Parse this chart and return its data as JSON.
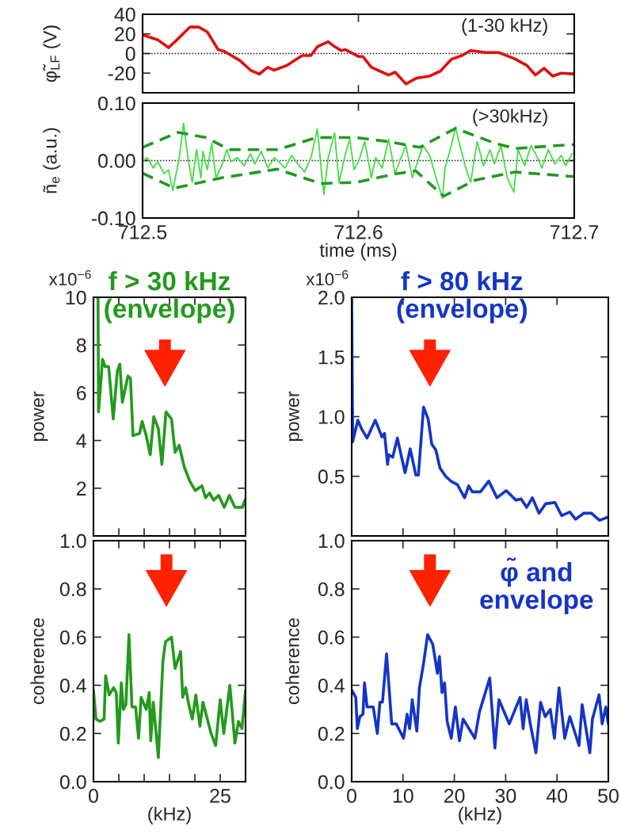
{
  "chart_data": [
    {
      "type": "line",
      "ylabel": "φ̃$_{LF}$ (V)",
      "annotations": [
        "(1-30 kHz)"
      ],
      "xlim": [
        712.5,
        712.7
      ],
      "xticks": [
        712.5,
        712.6,
        712.7
      ],
      "ylim": [
        -40,
        40
      ],
      "yticks": [
        -20,
        0,
        20,
        40
      ],
      "tick_labels": "y",
      "ref_lines": [
        {
          "axis": "y",
          "value": 0,
          "color": "#000000",
          "line_style": "dotted"
        }
      ],
      "series": [
        {
          "color": "#e01010",
          "x": [
            712.5,
            712.507,
            712.512,
            712.515,
            712.522,
            712.526,
            712.53,
            712.535,
            712.538,
            712.545,
            712.55,
            712.554,
            712.558,
            712.561,
            712.567,
            712.574,
            712.578,
            712.581,
            712.586,
            712.589,
            712.592,
            712.594,
            712.6,
            712.602,
            712.606,
            712.61,
            712.614,
            712.617,
            712.622,
            712.627,
            712.633,
            712.638,
            712.643,
            712.648,
            712.652,
            712.659,
            712.665,
            712.672,
            712.678,
            712.682,
            712.686,
            712.69,
            712.694,
            712.7
          ],
          "values": [
            19,
            14,
            6,
            12,
            27,
            27,
            22,
            4,
            2,
            -7,
            -17,
            -21,
            -14,
            -17,
            -12,
            -2,
            -2,
            7,
            12,
            7,
            3,
            4,
            -3,
            -3,
            -14,
            -18,
            -22,
            -19,
            -31,
            -25,
            -23,
            -18,
            -6,
            -2,
            3,
            1,
            1,
            -5,
            -12,
            -22,
            -15,
            -23,
            -20,
            -21
          ]
        }
      ]
    },
    {
      "type": "line",
      "xlabel": "time (ms)",
      "ylabel": "ñ$_{e}$ (a.u.)",
      "annotations": [
        "(>30kHz)"
      ],
      "xlim": [
        712.5,
        712.7
      ],
      "xticks": [
        712.5,
        712.6,
        712.7
      ],
      "ylim": [
        -0.1,
        0.1
      ],
      "yticks": [
        {
          "value": -0.1,
          "label": "-0.10"
        },
        {
          "value": 0,
          "label": "0.00"
        },
        {
          "value": 0.1,
          "label": "0.10"
        }
      ],
      "ref_lines": [
        {
          "axis": "y",
          "value": 0,
          "color": "#000000",
          "line_style": "dotted"
        }
      ],
      "series": [
        {
          "color": "#44dd44",
          "x": [
            712.5,
            712.502,
            712.505,
            712.507,
            712.51,
            712.512,
            712.514,
            712.517,
            712.519,
            712.521,
            712.523,
            712.525,
            712.527,
            712.528,
            712.53,
            712.532,
            712.534,
            712.537,
            712.539,
            712.541,
            712.544,
            712.547,
            712.55,
            712.552,
            712.555,
            712.558,
            712.561,
            712.563,
            712.566,
            712.569,
            712.572,
            712.575,
            712.578,
            712.581,
            712.583,
            712.584,
            712.586,
            712.589,
            712.591,
            712.594,
            712.596,
            712.598,
            712.6,
            712.603,
            712.606,
            712.608,
            712.611,
            712.614,
            712.617,
            712.619,
            712.622,
            712.625,
            712.628,
            712.63,
            712.633,
            712.636,
            712.639,
            712.64,
            712.643,
            712.645,
            712.647,
            712.65,
            712.652,
            712.655,
            712.658,
            712.661,
            712.663,
            712.666,
            712.669,
            712.672,
            712.674,
            712.677,
            712.68,
            712.683,
            712.685,
            712.688,
            712.691,
            712.694,
            712.696,
            712.699
          ],
          "values": [
            -0.002,
            0.005,
            -0.013,
            -0.002,
            -0.023,
            -0.016,
            -0.052,
            0.005,
            0.065,
            0.005,
            -0.038,
            0.019,
            -0.03,
            0.016,
            -0.016,
            0.03,
            -0.03,
            -0.006,
            0.019,
            -0.002,
            0.005,
            -0.009,
            0.012,
            -0.006,
            0.016,
            -0.013,
            0.005,
            -0.002,
            -0.013,
            0.009,
            -0.006,
            -0.02,
            0.005,
            0.055,
            -0.023,
            -0.059,
            0.005,
            0.048,
            -0.038,
            0.012,
            0.037,
            -0.016,
            -0.002,
            0.033,
            -0.03,
            0.005,
            -0.013,
            0.037,
            -0.023,
            -0.002,
            0.026,
            -0.03,
            0.005,
            0.026,
            0.009,
            -0.03,
            -0.066,
            -0.016,
            0.026,
            0.058,
            0.026,
            -0.016,
            -0.038,
            0.033,
            -0.009,
            0.019,
            -0.006,
            0.026,
            -0.03,
            -0.055,
            0.019,
            -0.009,
            0.026,
            0.005,
            -0.013,
            0.019,
            -0.006,
            0.009,
            -0.009,
            0.012
          ]
        },
        {
          "color": "#229922",
          "line_style": "dashed",
          "x": [
            712.5,
            712.5165,
            712.5294,
            712.5404,
            712.5624,
            712.5807,
            712.5991,
            712.6138,
            712.6284,
            712.645,
            712.6633,
            712.6725,
            712.7
          ],
          "values": [
            0.023,
            0.049,
            0.04,
            0.019,
            0.019,
            0.04,
            0.04,
            0.033,
            0.023,
            0.056,
            0.03,
            0.021,
            0.028
          ]
        },
        {
          "color": "#229922",
          "line_style": "dashed",
          "x": [
            712.5,
            712.5147,
            712.5367,
            712.5624,
            712.5826,
            712.5991,
            712.6174,
            712.6266,
            712.6395,
            712.6541,
            712.6725,
            712.7
          ],
          "values": [
            -0.022,
            -0.048,
            -0.03,
            -0.015,
            -0.04,
            -0.038,
            -0.023,
            -0.018,
            -0.062,
            -0.034,
            -0.02,
            -0.028
          ]
        }
      ]
    },
    {
      "type": "line",
      "title": "f > 30 kHz (envelope)",
      "ylabel": "power",
      "annotations": [
        "x10$^{−6}$"
      ],
      "xlim": [
        0,
        30
      ],
      "xticks": [
        0,
        5,
        10,
        15,
        20,
        25,
        30
      ],
      "ylim": [
        0,
        10
      ],
      "yticks": [
        {
          "value": 2,
          "label": "2"
        },
        {
          "value": 4,
          "label": "4"
        },
        {
          "value": 6,
          "label": "6"
        },
        {
          "value": 8,
          "label": "8"
        },
        {
          "value": 10,
          "label": "10"
        }
      ],
      "tick_labels": "y",
      "series": [
        {
          "color": "#239a1c",
          "x": [
            0.9,
            1.0,
            1.8,
            2.3,
            3.0,
            3.9,
            4.7,
            5.2,
            5.7,
            6.8,
            7.3,
            7.8,
            9.1,
            9.6,
            10.4,
            11.2,
            11.9,
            12.8,
            13.5,
            14.3,
            15.4,
            16.1,
            16.9,
            17.9,
            19.0,
            20.1,
            21.4,
            22.1,
            22.9,
            23.7,
            24.7,
            25.8,
            26.8,
            27.9,
            29.4,
            29.9
          ],
          "values": [
            10,
            5.2,
            7.4,
            7.1,
            7.1,
            4.9,
            6.9,
            7.2,
            5.6,
            6.7,
            6.6,
            4.2,
            4.3,
            4.8,
            4.2,
            3.4,
            5.0,
            4.5,
            3.0,
            5.2,
            4.9,
            3.5,
            3.8,
            2.9,
            2.3,
            1.9,
            2.1,
            1.6,
            1.8,
            1.5,
            1.7,
            1.2,
            1.7,
            1.2,
            1.2,
            1.5
          ]
        }
      ]
    },
    {
      "type": "line",
      "title": "f > 80 kHz (envelope)",
      "ylabel": "power",
      "annotations": [
        "x10$^{−6}$"
      ],
      "xlim": [
        0,
        50
      ],
      "xticks": [
        0,
        10,
        20,
        30,
        40,
        50
      ],
      "ylim": [
        0,
        2.0
      ],
      "yticks": [
        {
          "value": 0.5,
          "label": "0.5"
        },
        {
          "value": 1.0,
          "label": "1.0"
        },
        {
          "value": 1.5,
          "label": "1.5"
        },
        {
          "value": 2.0,
          "label": "2.0"
        }
      ],
      "tick_labels": "y",
      "series": [
        {
          "color": "#1535c8",
          "x": [
            0,
            0.2,
            1.2,
            1.9,
            3.0,
            4.6,
            5.9,
            6.4,
            7.0,
            7.2,
            8.0,
            8.9,
            10.4,
            11.4,
            12.5,
            13.0,
            14.0,
            14.9,
            15.6,
            16.4,
            17.2,
            18.3,
            19.3,
            20.6,
            22.0,
            22.8,
            23.5,
            25.1,
            26.7,
            28.3,
            30.1,
            32.0,
            33.0,
            34.1,
            35.2,
            36.5,
            37.8,
            39.6,
            40.9,
            42.5,
            43.6,
            45.2,
            46.7,
            48.3,
            50.0
          ],
          "values": [
            2.0,
            0.79,
            0.97,
            0.9,
            0.82,
            0.97,
            0.83,
            0.86,
            0.6,
            0.68,
            0.66,
            0.82,
            0.53,
            0.73,
            0.51,
            0.51,
            1.08,
            0.98,
            0.77,
            0.72,
            0.57,
            0.5,
            0.46,
            0.43,
            0.32,
            0.42,
            0.37,
            0.37,
            0.46,
            0.32,
            0.38,
            0.3,
            0.31,
            0.24,
            0.32,
            0.19,
            0.27,
            0.28,
            0.17,
            0.2,
            0.14,
            0.19,
            0.19,
            0.13,
            0.16
          ]
        }
      ]
    },
    {
      "type": "line",
      "xlabel": "(kHz)",
      "ylabel": "coherence",
      "xlim": [
        0,
        30
      ],
      "xticks": [
        {
          "value": 0,
          "label": "0"
        },
        {
          "value": 5,
          "label": null
        },
        {
          "value": 10,
          "label": null
        },
        {
          "value": 15,
          "label": null
        },
        {
          "value": 20,
          "label": null
        },
        {
          "value": 25,
          "label": "25"
        },
        {
          "value": 30,
          "label": null
        }
      ],
      "ylim": [
        0,
        1.0
      ],
      "yticks": [
        {
          "value": 0,
          "label": "0.0"
        },
        {
          "value": 0.2,
          "label": "0.2"
        },
        {
          "value": 0.4,
          "label": "0.4"
        },
        {
          "value": 0.6,
          "label": "0.6"
        },
        {
          "value": 0.8,
          "label": "0.8"
        },
        {
          "value": 1.0,
          "label": "1.0"
        }
      ],
      "series": [
        {
          "color": "#239a1c",
          "x": [
            0,
            0.5,
            1.3,
            2.1,
            2.4,
            3.1,
            4.0,
            4.5,
            4.9,
            5.5,
            5.9,
            6.4,
            7.0,
            7.6,
            8.3,
            8.9,
            9.4,
            10.4,
            11.0,
            11.3,
            11.8,
            12.8,
            13.7,
            14.2,
            14.8,
            15.4,
            16.1,
            17.2,
            17.6,
            18.2,
            18.8,
            19.5,
            20.2,
            21.0,
            21.6,
            23.2,
            24.1,
            25.0,
            25.7,
            26.9,
            27.9,
            28.6,
            29.3,
            30.0
          ],
          "values": [
            0.38,
            0.26,
            0.25,
            0.26,
            0.44,
            0.36,
            0.39,
            0.37,
            0.16,
            0.41,
            0.3,
            0.32,
            0.61,
            0.31,
            0.31,
            0.18,
            0.35,
            0.3,
            0.37,
            0.17,
            0.33,
            0.1,
            0.5,
            0.58,
            0.59,
            0.6,
            0.47,
            0.54,
            0.35,
            0.39,
            0.32,
            0.26,
            0.36,
            0.23,
            0.33,
            0.2,
            0.15,
            0.34,
            0.2,
            0.4,
            0.16,
            0.25,
            0.22,
            0.38
          ]
        }
      ]
    },
    {
      "type": "line",
      "title": "φ̃ and envelope",
      "xlabel": "(kHz)",
      "ylabel": "coherence",
      "xlim": [
        0,
        50
      ],
      "xticks": [
        0,
        10,
        20,
        30,
        40,
        50
      ],
      "ylim": [
        0,
        1.0
      ],
      "yticks": [
        {
          "value": 0,
          "label": "0.0"
        },
        {
          "value": 0.2,
          "label": "0.2"
        },
        {
          "value": 0.4,
          "label": "0.4"
        },
        {
          "value": 0.6,
          "label": "0.6"
        },
        {
          "value": 0.8,
          "label": "0.8"
        },
        {
          "value": 1.0,
          "label": "1.0"
        }
      ],
      "series": [
        {
          "color": "#1535c8",
          "x": [
            0,
            0.8,
            1.1,
            1.6,
            2.2,
            2.5,
            3.0,
            4.2,
            5.0,
            5.5,
            6.0,
            6.8,
            7.8,
            8.7,
            10.1,
            10.8,
            11.3,
            11.8,
            12.7,
            13.2,
            14.0,
            14.8,
            15.8,
            16.7,
            17.1,
            17.6,
            18.1,
            18.6,
            19.4,
            20.2,
            21.0,
            21.7,
            24.0,
            24.9,
            26.9,
            27.9,
            28.7,
            30.7,
            32.8,
            33.4,
            34.0,
            34.8,
            35.9,
            36.8,
            37.7,
            38.7,
            39.5,
            40.4,
            41.5,
            42.5,
            44.3,
            44.9,
            46.4,
            46.9,
            48.2,
            48.8,
            49.5,
            50.0
          ],
          "values": [
            0.38,
            0.35,
            0.22,
            0.27,
            0.28,
            0.41,
            0.31,
            0.31,
            0.2,
            0.33,
            0.33,
            0.53,
            0.24,
            0.24,
            0.18,
            0.28,
            0.22,
            0.34,
            0.21,
            0.39,
            0.49,
            0.61,
            0.57,
            0.45,
            0.52,
            0.37,
            0.41,
            0.25,
            0.18,
            0.31,
            0.17,
            0.26,
            0.18,
            0.29,
            0.43,
            0.14,
            0.34,
            0.24,
            0.35,
            0.22,
            0.34,
            0.24,
            0.12,
            0.33,
            0.27,
            0.3,
            0.18,
            0.39,
            0.18,
            0.27,
            0.15,
            0.32,
            0.12,
            0.26,
            0.36,
            0.24,
            0.31,
            0.24
          ]
        }
      ]
    }
  ]
}
